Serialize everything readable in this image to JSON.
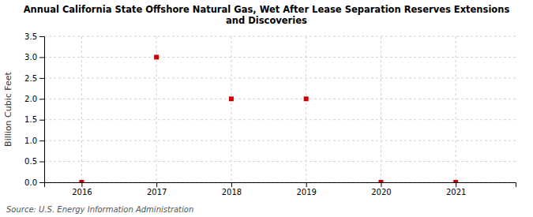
{
  "chart_data": {
    "type": "scatter",
    "title": "Annual California State Offshore Natural Gas, Wet After Lease Separation Reserves Extensions\nand Discoveries",
    "y_label": "Billion Cubic Feet",
    "annotations": [
      "Source: U.S. Energy Information Administration"
    ],
    "x": [
      2016,
      2017,
      2018,
      2019,
      2020,
      2021
    ],
    "values": [
      0,
      3.0,
      2.0,
      2.0,
      0,
      0
    ],
    "color": "#cc0000",
    "marker": "square",
    "xlim": [
      2015.5,
      2021.8
    ],
    "xticks": [
      2016,
      2017,
      2018,
      2019,
      2020,
      2021
    ],
    "ylim": [
      0.0,
      3.5
    ],
    "yticks": [
      {
        "value": 0.0,
        "label": "0.0"
      },
      0.5,
      {
        "value": 1.0,
        "label": "1.0"
      },
      1.5,
      {
        "value": 2.0,
        "label": "2.0"
      },
      2.5,
      {
        "value": 3.0,
        "label": "3.0"
      },
      3.5
    ],
    "grid": true
  }
}
